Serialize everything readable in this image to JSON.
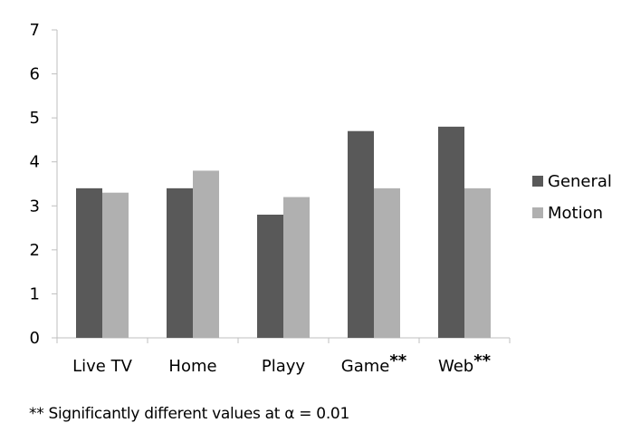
{
  "chart_data": {
    "type": "bar",
    "categories": [
      "Live TV",
      "Home",
      "Playy",
      "Game",
      "Web"
    ],
    "category_markers": [
      "",
      "",
      "",
      "**",
      "**"
    ],
    "series": [
      {
        "name": "General",
        "values": [
          3.4,
          3.4,
          2.8,
          4.7,
          4.8
        ],
        "color": "#595959"
      },
      {
        "name": "Motion",
        "values": [
          3.3,
          3.8,
          3.2,
          3.4,
          3.4
        ],
        "color": "#b0b0b0"
      }
    ],
    "ylim": [
      0,
      7
    ],
    "yticks": [
      "0",
      "1",
      "2",
      "3",
      "4",
      "5",
      "6",
      "7"
    ],
    "grid": false,
    "legend_position": "right",
    "axis_color": "#bfbfbf"
  },
  "footnote": "** Significantly different values at α = 0.01"
}
